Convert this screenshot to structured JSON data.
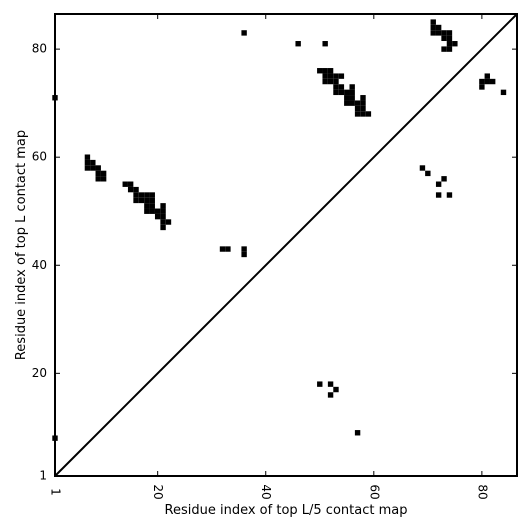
{
  "chart_data": {
    "type": "heatmap",
    "title": "",
    "xlabel": "Residue index of top L/5 contact map",
    "ylabel": "Residue index of top L contact map",
    "xlim": [
      1,
      86.5
    ],
    "ylim": [
      1,
      86.5
    ],
    "xticks": [
      1,
      20,
      40,
      60,
      80
    ],
    "yticks": [
      1,
      20,
      40,
      60,
      80
    ],
    "grid": false,
    "diagonal": true,
    "cell_color": "#000000",
    "upper_triangle_contacts": [
      [
        36,
        83
      ],
      [
        46,
        81
      ],
      [
        51,
        81
      ],
      [
        1,
        71
      ],
      [
        50,
        76
      ],
      [
        51,
        76
      ],
      [
        52,
        76
      ],
      [
        51,
        75
      ],
      [
        52,
        75
      ],
      [
        53,
        75
      ],
      [
        54,
        75
      ],
      [
        51,
        74
      ],
      [
        52,
        74
      ],
      [
        53,
        74
      ],
      [
        53,
        73
      ],
      [
        54,
        73
      ],
      [
        56,
        73
      ],
      [
        53,
        72
      ],
      [
        54,
        72
      ],
      [
        55,
        72
      ],
      [
        56,
        72
      ],
      [
        55,
        71
      ],
      [
        56,
        71
      ],
      [
        58,
        71
      ],
      [
        55,
        70
      ],
      [
        56,
        70
      ],
      [
        57,
        70
      ],
      [
        58,
        70
      ],
      [
        57,
        69
      ],
      [
        58,
        69
      ],
      [
        57,
        68
      ],
      [
        58,
        68
      ],
      [
        59,
        68
      ],
      [
        71,
        85
      ],
      [
        71,
        84
      ],
      [
        72,
        84
      ],
      [
        71,
        83
      ],
      [
        72,
        83
      ],
      [
        73,
        83
      ],
      [
        74,
        83
      ],
      [
        73,
        82
      ],
      [
        74,
        82
      ],
      [
        74,
        81
      ],
      [
        75,
        81
      ],
      [
        73,
        80
      ],
      [
        74,
        80
      ],
      [
        81,
        75
      ],
      [
        80,
        74
      ],
      [
        81,
        74
      ],
      [
        82,
        74
      ],
      [
        80,
        73
      ],
      [
        84,
        72
      ],
      [
        69,
        58
      ],
      [
        70,
        57
      ],
      [
        73,
        56
      ],
      [
        72,
        55
      ],
      [
        72,
        53
      ],
      [
        74,
        53
      ],
      [
        7,
        60
      ],
      [
        7,
        59
      ],
      [
        8,
        59
      ],
      [
        7,
        58
      ],
      [
        8,
        58
      ],
      [
        9,
        58
      ],
      [
        9,
        57
      ],
      [
        10,
        57
      ],
      [
        9,
        56
      ],
      [
        10,
        56
      ],
      [
        14,
        55
      ],
      [
        15,
        55
      ],
      [
        15,
        54
      ],
      [
        16,
        54
      ],
      [
        16,
        53
      ],
      [
        17,
        53
      ],
      [
        18,
        53
      ],
      [
        19,
        53
      ],
      [
        16,
        52
      ],
      [
        17,
        52
      ],
      [
        18,
        52
      ],
      [
        19,
        52
      ],
      [
        18,
        51
      ],
      [
        19,
        51
      ],
      [
        21,
        51
      ],
      [
        18,
        50
      ],
      [
        19,
        50
      ],
      [
        20,
        50
      ],
      [
        21,
        50
      ],
      [
        20,
        49
      ],
      [
        21,
        49
      ],
      [
        21,
        48
      ],
      [
        22,
        48
      ],
      [
        21,
        47
      ],
      [
        32,
        43
      ],
      [
        33,
        43
      ],
      [
        36,
        43
      ],
      [
        36,
        42
      ]
    ],
    "lower_triangle_contacts": [
      [
        1,
        8
      ],
      [
        57,
        9
      ],
      [
        52,
        16
      ],
      [
        53,
        17
      ],
      [
        50,
        18
      ],
      [
        52,
        18
      ]
    ]
  }
}
